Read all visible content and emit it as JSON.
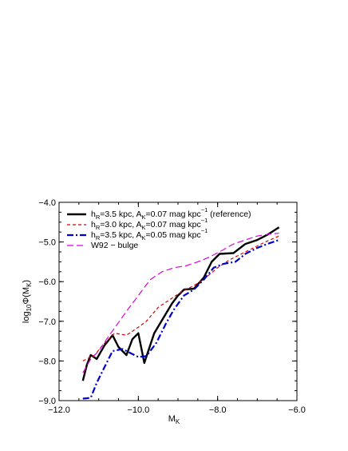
{
  "chart_data": {
    "type": "line",
    "xlabel": "M",
    "xlabel_sub": "K",
    "ylabel": "log",
    "ylabel_sub": "10",
    "ylabel_tail": "Φ(M",
    "ylabel_sub2": "K",
    "ylabel_close": ")",
    "xlim": [
      -12.0,
      -6.0
    ],
    "ylim": [
      -9.0,
      -4.0
    ],
    "xticks": [
      -12.0,
      -10.0,
      -8.0,
      -6.0
    ],
    "xtick_labels": [
      "−12.0",
      "−10.0",
      "−8.0",
      "−6.0"
    ],
    "yticks": [
      -9.0,
      -8.0,
      -7.0,
      -6.0,
      -5.0,
      -4.0
    ],
    "ytick_labels": [
      "−9.0",
      "−8.0",
      "−7.0",
      "−6.0",
      "−5.0",
      "−4.0"
    ],
    "grid": false,
    "legend_position": "top-left",
    "series": [
      {
        "legend": {
          "p1": "h",
          "s1": "R",
          "p2": "=3.5 kpc, A",
          "s2": "K",
          "p3": "=0.07 mag kpc",
          "sup": "−1",
          "p4": " (reference)"
        },
        "color": "#000000",
        "style": "solid-thick",
        "points": [
          [
            -11.4,
            -8.5
          ],
          [
            -11.3,
            -8.1
          ],
          [
            -11.2,
            -7.85
          ],
          [
            -11.05,
            -7.95
          ],
          [
            -10.85,
            -7.6
          ],
          [
            -10.65,
            -7.35
          ],
          [
            -10.5,
            -7.65
          ],
          [
            -10.3,
            -7.85
          ],
          [
            -10.15,
            -7.45
          ],
          [
            -10.0,
            -7.3
          ],
          [
            -9.85,
            -8.05
          ],
          [
            -9.6,
            -7.3
          ],
          [
            -9.3,
            -6.8
          ],
          [
            -9.15,
            -6.55
          ],
          [
            -9.0,
            -6.35
          ],
          [
            -8.85,
            -6.2
          ],
          [
            -8.6,
            -6.18
          ],
          [
            -8.35,
            -5.9
          ],
          [
            -8.15,
            -5.5
          ],
          [
            -7.95,
            -5.3
          ],
          [
            -7.6,
            -5.28
          ],
          [
            -7.3,
            -5.05
          ],
          [
            -7.0,
            -4.95
          ],
          [
            -6.75,
            -4.82
          ],
          [
            -6.45,
            -4.63
          ]
        ]
      },
      {
        "legend": {
          "p1": "h",
          "s1": "R",
          "p2": "=3.0 kpc, A",
          "s2": "K",
          "p3": "=0.07 mag kpc",
          "sup": "−1",
          "p4": ""
        },
        "color": "#dd0000",
        "style": "dashed",
        "points": [
          [
            -11.4,
            -8.0
          ],
          [
            -11.1,
            -7.85
          ],
          [
            -10.9,
            -7.6
          ],
          [
            -10.6,
            -7.3
          ],
          [
            -10.3,
            -7.35
          ],
          [
            -10.0,
            -7.15
          ],
          [
            -9.8,
            -7.0
          ],
          [
            -9.5,
            -6.65
          ],
          [
            -9.2,
            -6.45
          ],
          [
            -8.9,
            -6.25
          ],
          [
            -8.6,
            -6.1
          ],
          [
            -8.3,
            -5.9
          ],
          [
            -8.0,
            -5.65
          ],
          [
            -7.7,
            -5.45
          ],
          [
            -7.4,
            -5.3
          ],
          [
            -7.1,
            -5.15
          ],
          [
            -6.8,
            -5.0
          ],
          [
            -6.45,
            -4.85
          ]
        ]
      },
      {
        "legend": {
          "p1": "h",
          "s1": "R",
          "p2": "=3.5 kpc, A",
          "s2": "K",
          "p3": "=0.05 mag kpc",
          "sup": "−1",
          "p4": ""
        },
        "color": "#0000cc",
        "style": "dashdot-thick",
        "points": [
          [
            -11.4,
            -8.95
          ],
          [
            -11.2,
            -8.93
          ],
          [
            -11.05,
            -8.55
          ],
          [
            -10.85,
            -8.15
          ],
          [
            -10.65,
            -7.75
          ],
          [
            -10.4,
            -7.7
          ],
          [
            -10.2,
            -7.8
          ],
          [
            -10.0,
            -7.9
          ],
          [
            -9.8,
            -7.88
          ],
          [
            -9.55,
            -7.55
          ],
          [
            -9.3,
            -7.05
          ],
          [
            -9.1,
            -6.7
          ],
          [
            -8.85,
            -6.35
          ],
          [
            -8.6,
            -6.2
          ],
          [
            -8.35,
            -5.95
          ],
          [
            -8.1,
            -5.65
          ],
          [
            -7.85,
            -5.55
          ],
          [
            -7.55,
            -5.5
          ],
          [
            -7.3,
            -5.3
          ],
          [
            -7.0,
            -5.15
          ],
          [
            -6.75,
            -5.05
          ],
          [
            -6.45,
            -4.95
          ]
        ]
      },
      {
        "legend": {
          "p1": "W92 − bulge",
          "s1": "",
          "p2": "",
          "s2": "",
          "p3": "",
          "sup": "",
          "p4": ""
        },
        "color": "#dd00dd",
        "style": "longdash",
        "points": [
          [
            -11.4,
            -8.3
          ],
          [
            -11.2,
            -7.95
          ],
          [
            -11.0,
            -7.75
          ],
          [
            -10.8,
            -7.45
          ],
          [
            -10.55,
            -7.1
          ],
          [
            -10.3,
            -6.75
          ],
          [
            -10.0,
            -6.35
          ],
          [
            -9.7,
            -5.95
          ],
          [
            -9.4,
            -5.75
          ],
          [
            -9.1,
            -5.65
          ],
          [
            -8.8,
            -5.6
          ],
          [
            -8.5,
            -5.5
          ],
          [
            -8.2,
            -5.38
          ],
          [
            -7.9,
            -5.22
          ],
          [
            -7.6,
            -5.05
          ],
          [
            -7.3,
            -4.95
          ],
          [
            -7.0,
            -4.85
          ],
          [
            -6.7,
            -4.8
          ],
          [
            -6.45,
            -4.78
          ]
        ]
      }
    ]
  }
}
